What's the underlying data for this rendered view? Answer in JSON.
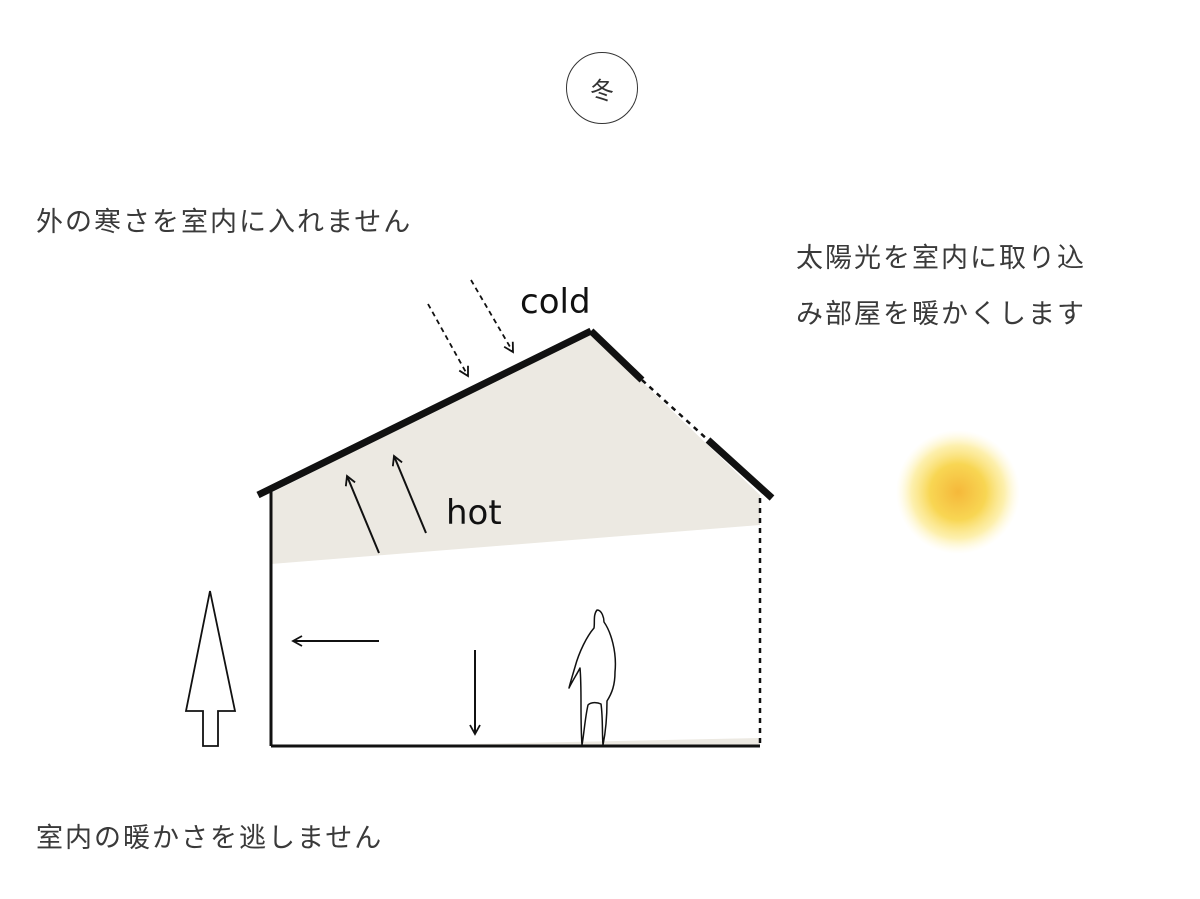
{
  "season": "冬",
  "captions": {
    "top_left": "外の寒さを室内に入れません",
    "right_line1": "太陽光を室内に取り込",
    "right_line2": "み部屋を暖かくします",
    "bottom": "室内の暖かさを逃しません"
  },
  "labels": {
    "cold": "cold",
    "hot": "hot"
  },
  "colors": {
    "warm_fill": "#ece9e2",
    "sun_core": "#f5b83a",
    "sun_glow": "#fce98a",
    "line": "#111111"
  }
}
